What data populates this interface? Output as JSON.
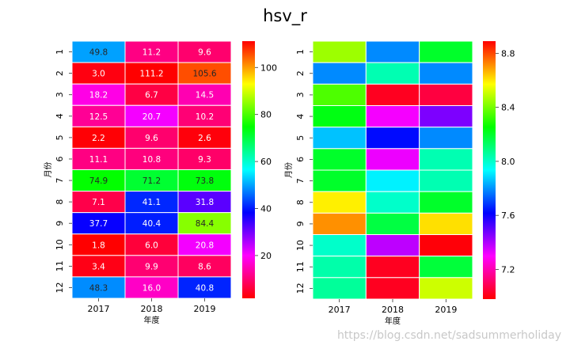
{
  "title": "hsv_r",
  "watermark": "https://blog.csdn.net/sadsummerholiday",
  "chart_data": [
    {
      "type": "heatmap",
      "colormap": "hsv_r",
      "annotated": true,
      "xlabel": "年度",
      "ylabel": "月份",
      "x_categories": [
        "2017",
        "2018",
        "2019"
      ],
      "y_categories": [
        "1",
        "2",
        "3",
        "4",
        "5",
        "6",
        "7",
        "8",
        "9",
        "10",
        "11",
        "12"
      ],
      "values": [
        [
          49.8,
          11.2,
          9.6
        ],
        [
          3.0,
          111.2,
          105.6
        ],
        [
          18.2,
          6.7,
          14.5
        ],
        [
          12.5,
          20.7,
          10.2
        ],
        [
          2.2,
          9.6,
          2.6
        ],
        [
          11.1,
          10.8,
          9.3
        ],
        [
          74.9,
          71.2,
          73.8
        ],
        [
          7.1,
          41.1,
          31.8
        ],
        [
          37.7,
          40.4,
          84.4
        ],
        [
          1.8,
          6.0,
          20.8
        ],
        [
          3.4,
          9.9,
          8.6
        ],
        [
          48.3,
          16.0,
          40.8
        ]
      ],
      "vmin": 1.8,
      "vmax": 111.2,
      "colorbar_ticks": [
        "20",
        "40",
        "60",
        "80",
        "100"
      ]
    },
    {
      "type": "heatmap",
      "colormap": "hsv_r",
      "annotated": false,
      "xlabel": "年度",
      "ylabel": "月份",
      "x_categories": [
        "2017",
        "2018",
        "2019"
      ],
      "y_categories": [
        "1",
        "2",
        "3",
        "4",
        "5",
        "6",
        "7",
        "8",
        "9",
        "10",
        "11",
        "12"
      ],
      "values": [
        [
          8.45,
          7.79,
          8.2
        ],
        [
          7.79,
          8.03,
          7.79
        ],
        [
          8.35,
          7.02,
          7.06
        ],
        [
          8.23,
          7.31,
          7.46
        ],
        [
          7.86,
          7.63,
          7.79
        ],
        [
          8.2,
          7.32,
          8.03
        ],
        [
          8.2,
          7.92,
          8.03
        ],
        [
          8.59,
          8.0,
          8.2
        ],
        [
          8.71,
          8.17,
          8.61
        ],
        [
          8.0,
          7.38,
          6.99
        ],
        [
          8.04,
          7.02,
          8.18
        ],
        [
          8.06,
          7.02,
          8.51
        ]
      ],
      "vmin": 6.98,
      "vmax": 8.89,
      "colorbar_ticks": [
        "7.2",
        "7.6",
        "8.0",
        "8.4",
        "8.8"
      ]
    }
  ]
}
